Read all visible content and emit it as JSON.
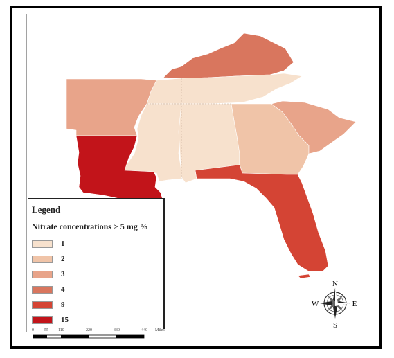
{
  "map": {
    "states": [
      {
        "name": "Kentucky",
        "category": "4",
        "color": "#d9765e"
      },
      {
        "name": "Tennessee",
        "category": "1",
        "color": "#f7e1cd"
      },
      {
        "name": "Arkansas",
        "category": "3",
        "color": "#e8a48a"
      },
      {
        "name": "Mississippi",
        "category": "1",
        "color": "#f7e1cd"
      },
      {
        "name": "Alabama",
        "category": "1",
        "color": "#f7e1cd"
      },
      {
        "name": "Georgia",
        "category": "2",
        "color": "#f0c4a8"
      },
      {
        "name": "South Carolina",
        "category": "3",
        "color": "#e8a48a"
      },
      {
        "name": "Louisiana",
        "category": "15",
        "color": "#c2141a"
      },
      {
        "name": "Florida",
        "category": "9",
        "color": "#d44434"
      }
    ]
  },
  "legend": {
    "title": "Legend",
    "subtitle": "Nitrate concentrations > 5 mg %",
    "items": [
      {
        "label": "1",
        "color": "#f7e1cd"
      },
      {
        "label": "2",
        "color": "#f0c4a8"
      },
      {
        "label": "3",
        "color": "#e8a48a"
      },
      {
        "label": "4",
        "color": "#d9765e"
      },
      {
        "label": "9",
        "color": "#d44434"
      },
      {
        "label": "15",
        "color": "#c2141a"
      }
    ]
  },
  "scale": {
    "ticks": [
      "0",
      "55",
      "110",
      "220",
      "330",
      "440"
    ],
    "unit": "Miles"
  },
  "compass": {
    "n": "N",
    "s": "S",
    "e": "E",
    "w": "W"
  }
}
